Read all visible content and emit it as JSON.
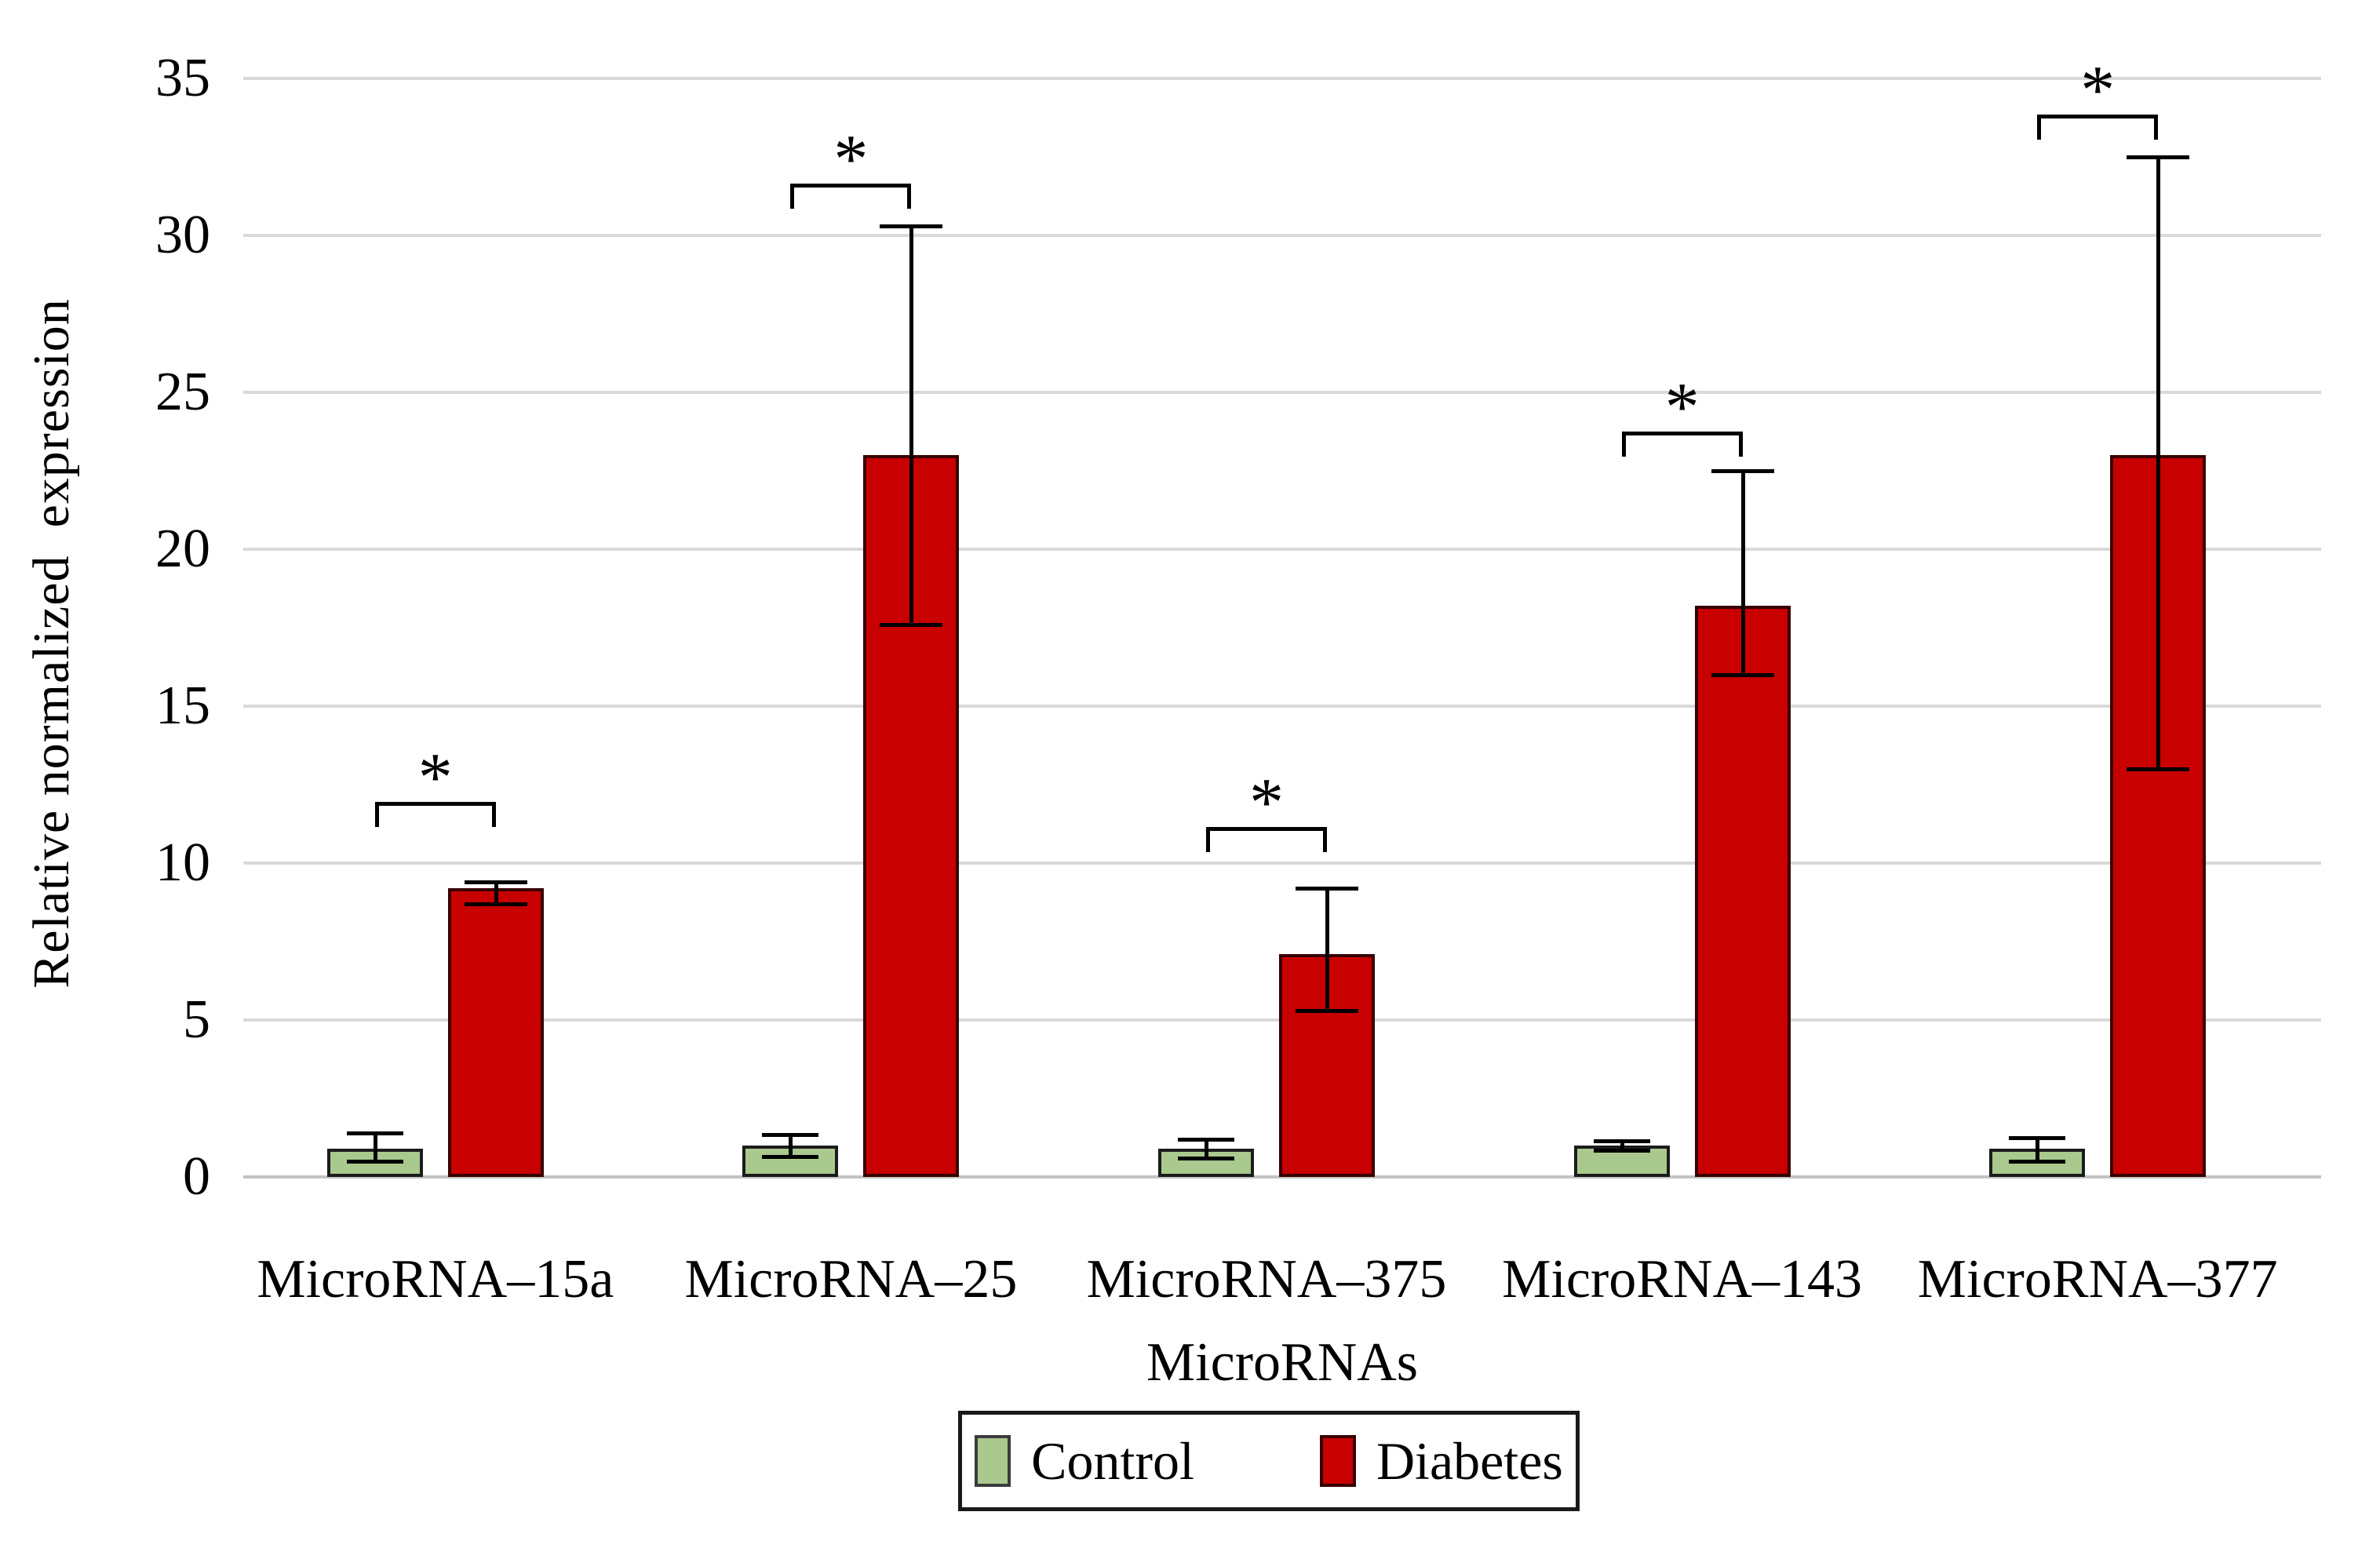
{
  "figure": {
    "background": "#FFFFFF"
  },
  "y_axis": {
    "title": "Relative normalized  expression",
    "ticks": [
      "0",
      "5",
      "10",
      "15",
      "20",
      "25",
      "30",
      "35"
    ],
    "max": 35
  },
  "x_axis": {
    "title": "MicroRNAs"
  },
  "legend": {
    "items": [
      {
        "label": "Control",
        "color": "#A9C98E"
      },
      {
        "label": "Diabetes",
        "color": "#C90000"
      }
    ]
  },
  "chart_data": {
    "type": "bar",
    "title": "",
    "categories": [
      "MicroRNA–15a",
      "MicroRNA–25",
      "MicroRNA–375",
      "MicroRNA–143",
      "MicroRNA–377"
    ],
    "series": [
      {
        "name": "Control",
        "color": "#A9C98E",
        "border": "#1C1C1C",
        "values": [
          0.9,
          1.0,
          0.9,
          1.0,
          0.9
        ],
        "error_upper": [
          1.4,
          1.35,
          1.2,
          1.15,
          1.25
        ],
        "error_lower": [
          0.5,
          0.65,
          0.6,
          0.85,
          0.5
        ]
      },
      {
        "name": "Diabetes",
        "color": "#C90000",
        "border": "#380000",
        "values": [
          9.2,
          23.0,
          7.1,
          18.2,
          23.0
        ],
        "error_upper": [
          9.4,
          30.3,
          9.2,
          22.5,
          32.5
        ],
        "error_lower": [
          8.7,
          17.6,
          5.3,
          16.0,
          13.0
        ]
      }
    ],
    "significance": {
      "symbol": "*",
      "bracket_y": [
        11.9,
        31.6,
        11.1,
        23.7,
        33.8
      ]
    },
    "xlabel": "MicroRNAs",
    "ylabel": "Relative normalized  expression",
    "ylim": [
      0,
      35
    ],
    "ytick_step": 5,
    "grid": true,
    "legend_position": "bottom"
  }
}
